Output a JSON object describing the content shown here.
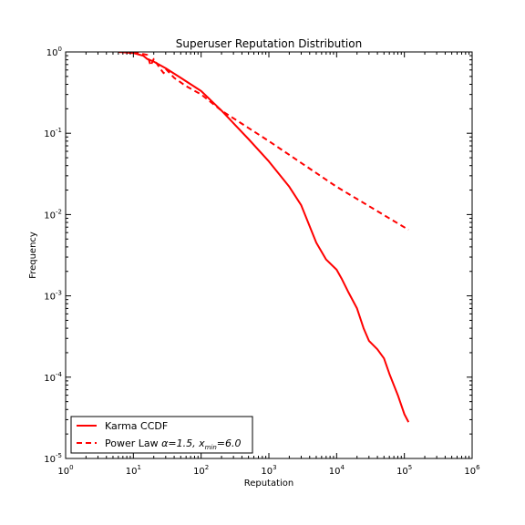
{
  "chart_data": {
    "type": "line",
    "title": "Superuser Reputation Distribution",
    "xlabel": "Reputation",
    "ylabel": "Frequency",
    "xscale": "log",
    "yscale": "log",
    "xlim": [
      1,
      1000000
    ],
    "ylim": [
      1e-05,
      1
    ],
    "grid": false,
    "legend_position": "lower-left",
    "x_ticks": [
      {
        "base": "10",
        "exp": "0",
        "value": 1
      },
      {
        "base": "10",
        "exp": "1",
        "value": 10
      },
      {
        "base": "10",
        "exp": "2",
        "value": 100
      },
      {
        "base": "10",
        "exp": "3",
        "value": 1000
      },
      {
        "base": "10",
        "exp": "4",
        "value": 10000
      },
      {
        "base": "10",
        "exp": "5",
        "value": 100000
      },
      {
        "base": "10",
        "exp": "6",
        "value": 1000000
      }
    ],
    "y_ticks": [
      {
        "base": "10",
        "exp": "0",
        "value": 1
      },
      {
        "base": "10",
        "exp": "-1",
        "value": 0.1
      },
      {
        "base": "10",
        "exp": "-2",
        "value": 0.01
      },
      {
        "base": "10",
        "exp": "-3",
        "value": 0.001
      },
      {
        "base": "10",
        "exp": "-4",
        "value": 0.0001
      },
      {
        "base": "10",
        "exp": "-5",
        "value": 1e-05
      }
    ],
    "series": [
      {
        "name": "Karma CCDF",
        "color": "#ff0000",
        "style": "solid",
        "points": [
          [
            6,
            1.0
          ],
          [
            10,
            0.97
          ],
          [
            12,
            0.93
          ],
          [
            14,
            0.9
          ],
          [
            16,
            0.82
          ],
          [
            20,
            0.76
          ],
          [
            30,
            0.63
          ],
          [
            50,
            0.48
          ],
          [
            100,
            0.33
          ],
          [
            200,
            0.19
          ],
          [
            500,
            0.085
          ],
          [
            1000,
            0.045
          ],
          [
            2000,
            0.022
          ],
          [
            3000,
            0.013
          ],
          [
            5000,
            0.0045
          ],
          [
            7000,
            0.0028
          ],
          [
            10000,
            0.0021
          ],
          [
            12000,
            0.0016
          ],
          [
            15000,
            0.0011
          ],
          [
            20000,
            0.0007
          ],
          [
            25000,
            0.0004
          ],
          [
            30000,
            0.00028
          ],
          [
            40000,
            0.00022
          ],
          [
            50000,
            0.00017
          ],
          [
            60000,
            0.00011
          ],
          [
            80000,
            6e-05
          ],
          [
            100000,
            3.5e-05
          ],
          [
            115000,
            2.8e-05
          ]
        ]
      },
      {
        "name": "Power Law",
        "color": "#ff0000",
        "style": "dashed",
        "points": [
          [
            10,
            1.0
          ],
          [
            16,
            0.92
          ],
          [
            18,
            0.68
          ],
          [
            20,
            0.82
          ],
          [
            25,
            0.62
          ],
          [
            28,
            0.55
          ],
          [
            30,
            0.62
          ],
          [
            40,
            0.48
          ],
          [
            60,
            0.38
          ],
          [
            100,
            0.3
          ],
          [
            200,
            0.19
          ],
          [
            1000,
            0.08
          ],
          [
            10000,
            0.022
          ],
          [
            115000,
            0.0065
          ]
        ]
      }
    ],
    "legend": [
      {
        "label": "Karma CCDF",
        "math": ""
      },
      {
        "label": "Power Law ",
        "math": "α=1.5, x",
        "math_sub": "min",
        "math_tail": "=6.0"
      }
    ]
  }
}
